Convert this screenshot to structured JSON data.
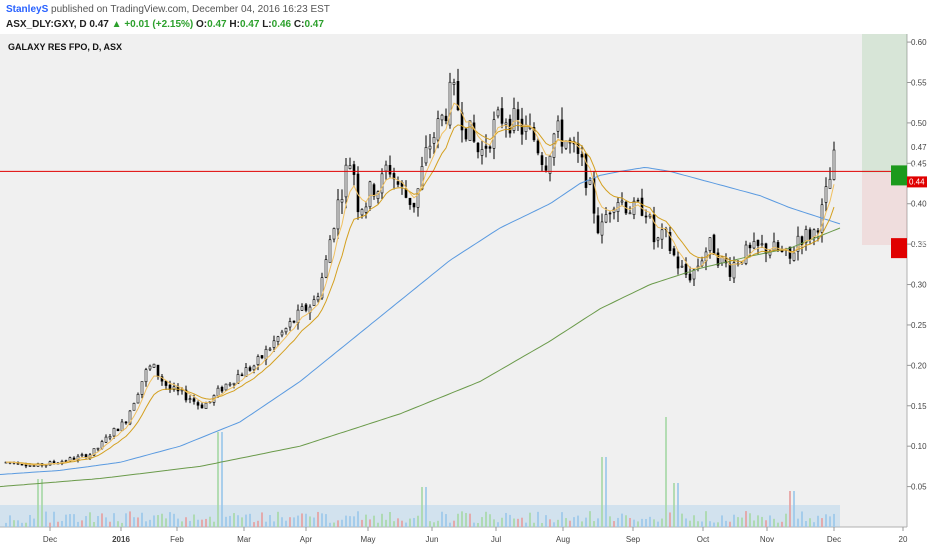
{
  "header": {
    "author": "StanleyS",
    "published_text": "published on TradingView.com, December 04, 2016 16:23 EST",
    "symbol": "ASX_DLY:GXY, D",
    "last": "0.47",
    "change_arrow": "▲",
    "change": "+0.01 (+2.15%)",
    "open_label": "O:",
    "open": "0.47",
    "high_label": "H:",
    "high": "0.47",
    "low_label": "L:",
    "low": "0.46",
    "close_label": "C:",
    "close": "0.47"
  },
  "chart_title": "GALAXY RES FPO, D, ASX",
  "price_labels": {
    "current": "0.47",
    "green_box": "0.44",
    "red_line_box": "0.44",
    "red_box": "0.35"
  },
  "colors": {
    "background": "#f0f0f0",
    "up_candle": "#ffffff",
    "down_candle": "#000000",
    "ema_fast": "#f0c060",
    "ema_slow": "#d4a020",
    "ma_100": "#5a9ae0",
    "ma_200": "#6a9a4a",
    "resistance": "#e00000",
    "target_zone": "#2ca02c",
    "stop_zone": "#e00000"
  },
  "chart_data": {
    "type": "candlestick",
    "title": "GALAXY RES FPO, D, ASX",
    "ylim": [
      0.0,
      0.61
    ],
    "y_ticks": [
      "0.60",
      "0.55",
      "0.50",
      "0.45",
      "0.40",
      "0.35",
      "0.30",
      "0.25",
      "0.20",
      "0.15",
      "0.10",
      "0.05"
    ],
    "x_ticks": [
      "Dec",
      "2016",
      "Feb",
      "Mar",
      "Apr",
      "May",
      "Jun",
      "Jul",
      "Aug",
      "Sep",
      "Oct",
      "Nov",
      "Dec",
      "20"
    ],
    "resistance_level": 0.44,
    "price_path": [
      [
        0,
        0.08
      ],
      [
        20,
        0.08
      ],
      [
        35,
        0.075
      ],
      [
        55,
        0.08
      ],
      [
        75,
        0.085
      ],
      [
        90,
        0.09
      ],
      [
        100,
        0.1
      ],
      [
        110,
        0.115
      ],
      [
        125,
        0.13
      ],
      [
        135,
        0.16
      ],
      [
        145,
        0.19
      ],
      [
        152,
        0.2
      ],
      [
        160,
        0.185
      ],
      [
        170,
        0.17
      ],
      [
        180,
        0.165
      ],
      [
        190,
        0.16
      ],
      [
        200,
        0.15
      ],
      [
        210,
        0.155
      ],
      [
        220,
        0.17
      ],
      [
        230,
        0.18
      ],
      [
        240,
        0.19
      ],
      [
        255,
        0.2
      ],
      [
        265,
        0.215
      ],
      [
        275,
        0.23
      ],
      [
        290,
        0.25
      ],
      [
        305,
        0.27
      ],
      [
        315,
        0.28
      ],
      [
        325,
        0.32
      ],
      [
        332,
        0.37
      ],
      [
        340,
        0.41
      ],
      [
        346,
        0.44
      ],
      [
        352,
        0.46
      ],
      [
        358,
        0.4
      ],
      [
        365,
        0.4
      ],
      [
        372,
        0.42
      ],
      [
        380,
        0.42
      ],
      [
        388,
        0.45
      ],
      [
        395,
        0.43
      ],
      [
        405,
        0.41
      ],
      [
        415,
        0.4
      ],
      [
        422,
        0.44
      ],
      [
        428,
        0.47
      ],
      [
        436,
        0.49
      ],
      [
        444,
        0.51
      ],
      [
        452,
        0.54
      ],
      [
        458,
        0.52
      ],
      [
        465,
        0.5
      ],
      [
        472,
        0.48
      ],
      [
        480,
        0.46
      ],
      [
        488,
        0.48
      ],
      [
        496,
        0.5
      ],
      [
        505,
        0.51
      ],
      [
        515,
        0.5
      ],
      [
        525,
        0.49
      ],
      [
        535,
        0.48
      ],
      [
        545,
        0.45
      ],
      [
        555,
        0.49
      ],
      [
        565,
        0.48
      ],
      [
        575,
        0.46
      ],
      [
        585,
        0.44
      ],
      [
        593,
        0.4
      ],
      [
        600,
        0.36
      ],
      [
        607,
        0.39
      ],
      [
        615,
        0.41
      ],
      [
        625,
        0.4
      ],
      [
        635,
        0.39
      ],
      [
        645,
        0.4
      ],
      [
        655,
        0.35
      ],
      [
        665,
        0.36
      ],
      [
        672,
        0.34
      ],
      [
        680,
        0.32
      ],
      [
        688,
        0.31
      ],
      [
        696,
        0.32
      ],
      [
        704,
        0.34
      ],
      [
        712,
        0.35
      ],
      [
        720,
        0.33
      ],
      [
        730,
        0.32
      ],
      [
        740,
        0.335
      ],
      [
        750,
        0.34
      ],
      [
        760,
        0.345
      ],
      [
        770,
        0.345
      ],
      [
        780,
        0.34
      ],
      [
        790,
        0.33
      ],
      [
        798,
        0.36
      ],
      [
        806,
        0.36
      ],
      [
        814,
        0.365
      ],
      [
        822,
        0.39
      ],
      [
        830,
        0.43
      ],
      [
        837,
        0.47
      ]
    ],
    "ma_100_path": [
      [
        0,
        0.065
      ],
      [
        60,
        0.07
      ],
      [
        120,
        0.08
      ],
      [
        180,
        0.1
      ],
      [
        240,
        0.13
      ],
      [
        300,
        0.18
      ],
      [
        350,
        0.23
      ],
      [
        400,
        0.28
      ],
      [
        450,
        0.33
      ],
      [
        500,
        0.37
      ],
      [
        550,
        0.4
      ],
      [
        580,
        0.425
      ],
      [
        600,
        0.435
      ],
      [
        620,
        0.44
      ],
      [
        645,
        0.445
      ],
      [
        670,
        0.44
      ],
      [
        700,
        0.43
      ],
      [
        730,
        0.42
      ],
      [
        760,
        0.41
      ],
      [
        790,
        0.395
      ],
      [
        815,
        0.385
      ],
      [
        840,
        0.375
      ]
    ],
    "ma_200_path": [
      [
        0,
        0.05
      ],
      [
        100,
        0.06
      ],
      [
        200,
        0.075
      ],
      [
        300,
        0.1
      ],
      [
        400,
        0.14
      ],
      [
        480,
        0.18
      ],
      [
        550,
        0.23
      ],
      [
        600,
        0.27
      ],
      [
        650,
        0.3
      ],
      [
        700,
        0.32
      ],
      [
        750,
        0.335
      ],
      [
        790,
        0.345
      ],
      [
        820,
        0.36
      ],
      [
        840,
        0.37
      ]
    ]
  }
}
